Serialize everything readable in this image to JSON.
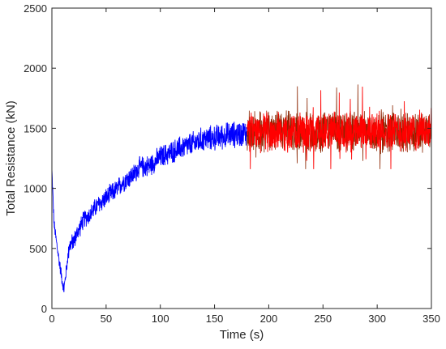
{
  "chart_data": {
    "type": "line",
    "title": "",
    "xlabel": "Time (s)",
    "ylabel": "Total Resistance (kN)",
    "xlim": [
      0,
      350
    ],
    "ylim": [
      0,
      2500
    ],
    "xticks": [
      0,
      50,
      100,
      150,
      200,
      250,
      300,
      350
    ],
    "yticks": [
      0,
      500,
      1000,
      1500,
      2000,
      2500
    ],
    "xtick_labels": [
      "0",
      "50",
      "100",
      "150",
      "200",
      "250",
      "300",
      "350"
    ],
    "ytick_labels": [
      "0",
      "500",
      "1000",
      "1500",
      "2000",
      "2500"
    ],
    "grid": false,
    "legend": "none",
    "series": [
      {
        "color": "#0000ff",
        "x_range": [
          0,
          180
        ],
        "trend": [
          [
            0,
            1150
          ],
          [
            2,
            700
          ],
          [
            5,
            500
          ],
          [
            8,
            320
          ],
          [
            11,
            150
          ],
          [
            13,
            300
          ],
          [
            16,
            520
          ],
          [
            20,
            560
          ],
          [
            25,
            660
          ],
          [
            30,
            750
          ],
          [
            35,
            780
          ],
          [
            40,
            840
          ],
          [
            45,
            880
          ],
          [
            50,
            920
          ],
          [
            55,
            960
          ],
          [
            60,
            990
          ],
          [
            65,
            1050
          ],
          [
            70,
            1080
          ],
          [
            75,
            1110
          ],
          [
            80,
            1170
          ],
          [
            90,
            1190
          ],
          [
            100,
            1260
          ],
          [
            110,
            1300
          ],
          [
            120,
            1340
          ],
          [
            130,
            1370
          ],
          [
            140,
            1410
          ],
          [
            150,
            1420
          ],
          [
            160,
            1440
          ],
          [
            170,
            1450
          ],
          [
            180,
            1460
          ]
        ],
        "noise_amplitude": 100
      },
      {
        "color": "#ff0000",
        "dark_color": "#8b2500",
        "x_range": [
          180,
          350
        ],
        "mean": 1470,
        "noise_amplitude": 180,
        "min": 1160,
        "max": 1930
      }
    ]
  }
}
